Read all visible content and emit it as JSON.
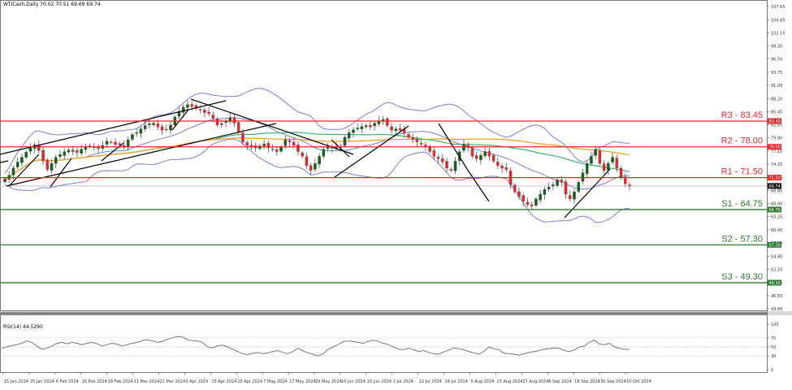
{
  "header": {
    "symbol_title": "WTICash,Daily  70.02 70.51 69.69 69.74"
  },
  "rsi_panel": {
    "title": "RSI(14) 44.5290"
  },
  "colors": {
    "resistance": "#e8262a",
    "support": "#2e7d32",
    "bull_candle": "#1b5e20",
    "bear_candle": "#d32f2f",
    "bollinger": "#7b7fd0",
    "ma_fast": "#3cb371",
    "ma_slow": "#ff9a1f",
    "trendline": "#000000",
    "current_price_tag": "#111111",
    "rsi_line": "#777777"
  },
  "chart_data": [
    {
      "type": "candlestick",
      "title": "WTICash, Daily",
      "ohlc_last": {
        "open": 70.02,
        "high": 70.51,
        "low": 69.69,
        "close": 69.74
      },
      "y_axis_ticks": [
        107.65,
        104.85,
        102.1,
        99.3,
        96.55,
        93.75,
        91.0,
        88.2,
        85.45,
        82.65,
        79.9,
        77.1,
        74.35,
        71.55,
        68.8,
        66.0,
        63.25,
        60.45,
        57.7,
        54.9,
        52.1,
        49.35,
        46.55,
        43.8
      ],
      "ylim": [
        43.8,
        107.65
      ],
      "x_axis_ticks": [
        "15 Jan 2024",
        "25 Jan 2024",
        "6 Feb 2024",
        "16 Feb 2024",
        "28 Feb 2024",
        "11 Mar 2024",
        "21 Mar 2024",
        "3 Apr 2024",
        "15 Apr 2024",
        "25 Apr 2024",
        "7 May 2024",
        "17 May 2024",
        "29 May 2024",
        "10 Jun 2024",
        "20 Jun 2024",
        "2 Jul 2024",
        "12 Jul 2024",
        "24 Jul 2024",
        "5 Aug 2024",
        "15 Aug 2024",
        "27 Aug 2024",
        "6 Sep 2024",
        "18 Sep 2024",
        "30 Sep 2024",
        "10 Oct 2024"
      ],
      "levels": [
        {
          "name": "R3",
          "label": "R3 - 83.45",
          "value": 83.45,
          "tag": "83.45",
          "kind": "resistance"
        },
        {
          "name": "R2",
          "label": "R2 - 78.00",
          "value": 78.0,
          "tag": "78.00",
          "kind": "resistance"
        },
        {
          "name": "R1",
          "label": "R1 - 71.50",
          "value": 71.5,
          "tag": "71.50",
          "kind": "resistance"
        },
        {
          "name": "S1",
          "label": "S1 - 64.75",
          "value": 64.75,
          "tag": "64.75",
          "kind": "support"
        },
        {
          "name": "S2",
          "label": "S2 - 57.30",
          "value": 57.3,
          "tag": "57.30",
          "kind": "support"
        },
        {
          "name": "S3",
          "label": "S3 - 49.30",
          "value": 49.3,
          "tag": "49.30",
          "kind": "support"
        }
      ],
      "current_price": {
        "value": 69.74,
        "tag": "69.74"
      },
      "series_close_approx": [
        71.2,
        72.0,
        73.5,
        74.8,
        75.8,
        76.9,
        77.9,
        78.4,
        77.2,
        75.0,
        73.2,
        74.5,
        75.8,
        76.4,
        77.0,
        77.3,
        77.0,
        76.8,
        77.5,
        77.9,
        78.2,
        78.0,
        77.6,
        78.3,
        79.2,
        79.0,
        78.5,
        78.6,
        78.0,
        79.5,
        80.6,
        81.0,
        81.8,
        82.5,
        82.9,
        83.0,
        82.2,
        81.5,
        81.7,
        82.6,
        84.3,
        85.5,
        86.4,
        86.9,
        86.5,
        86.1,
        85.8,
        85.2,
        85.0,
        84.0,
        82.6,
        82.9,
        83.5,
        84.2,
        83.0,
        81.2,
        79.0,
        78.3,
        78.0,
        77.8,
        78.2,
        78.6,
        77.8,
        77.5,
        77.0,
        78.0,
        79.5,
        79.0,
        78.3,
        77.0,
        76.0,
        74.0,
        73.0,
        74.5,
        76.0,
        77.5,
        78.0,
        78.0,
        77.8,
        78.0,
        80.0,
        81.0,
        81.6,
        82.0,
        82.3,
        82.5,
        82.2,
        83.0,
        83.5,
        83.8,
        82.5,
        81.5,
        81.8,
        81.5,
        80.8,
        80.0,
        79.5,
        79.0,
        78.5,
        78.0,
        77.0,
        76.0,
        75.5,
        74.8,
        73.5,
        73.0,
        75.0,
        77.0,
        78.5,
        77.8,
        76.0,
        75.5,
        76.2,
        77.0,
        76.0,
        75.0,
        74.0,
        73.5,
        73.2,
        70.0,
        68.5,
        67.5,
        66.5,
        65.8,
        65.5,
        67.0,
        68.0,
        69.0,
        69.5,
        70.0,
        71.0,
        70.5,
        68.0,
        67.0,
        68.5,
        70.5,
        72.5,
        74.5,
        76.0,
        77.5,
        74.5,
        73.0,
        74.5,
        75.8,
        73.5,
        71.5,
        70.2,
        69.74
      ],
      "indicators": [
        "Bollinger Bands",
        "Moving Average (fast, green)",
        "Moving Average (slow, orange)",
        "Trendlines"
      ]
    },
    {
      "type": "line",
      "title": "RSI(14) 44.5290",
      "y_axis_ticks": [
        100,
        70,
        50,
        30,
        0
      ],
      "ylim": [
        0,
        100
      ],
      "levels": [
        70,
        50,
        30
      ],
      "last_value": 44.529,
      "values_approx": [
        47,
        50,
        53,
        55,
        58,
        63,
        60,
        52,
        45,
        47,
        52,
        58,
        60,
        57,
        60,
        58,
        55,
        58,
        60,
        57,
        52,
        55,
        58,
        56,
        52,
        55,
        58,
        60,
        64,
        66,
        63,
        60,
        62,
        67,
        70,
        73,
        72,
        66,
        64,
        63,
        60,
        50,
        48,
        52,
        54,
        50,
        45,
        40,
        35,
        33,
        36,
        38,
        35,
        37,
        40,
        42,
        38,
        35,
        40,
        47,
        41,
        37,
        34,
        30,
        35,
        45,
        50,
        55,
        62,
        63,
        62,
        60,
        58,
        62,
        65,
        62,
        58,
        55,
        50,
        45,
        44,
        47,
        44,
        40,
        42,
        38,
        35,
        34,
        39,
        43,
        48,
        46,
        44,
        40,
        37,
        34,
        40,
        50,
        46,
        44,
        36,
        35,
        34,
        32,
        35,
        38,
        40,
        42,
        45,
        46,
        48,
        47,
        42,
        40,
        43,
        50,
        52,
        60,
        65,
        56,
        55,
        58,
        50,
        47,
        45,
        44.5
      ]
    }
  ]
}
